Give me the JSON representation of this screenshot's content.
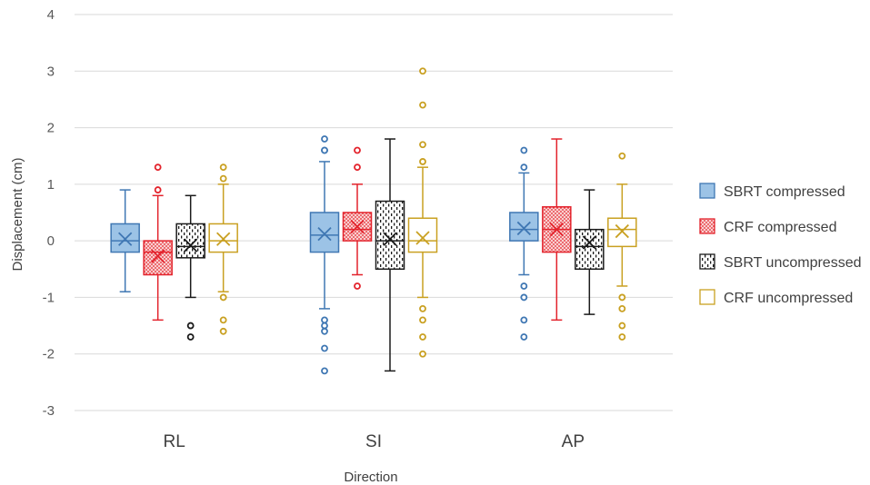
{
  "chart_data": {
    "type": "box",
    "xlabel": "Direction",
    "ylabel": "Displacement (cm)",
    "ylim": [
      -3,
      4
    ],
    "yticks": [
      -3,
      -2,
      -1,
      0,
      1,
      2,
      3,
      4
    ],
    "categories": [
      "RL",
      "SI",
      "AP"
    ],
    "grid": "horizontal",
    "legend_position": "right",
    "series": [
      {
        "name": "SBRT compressed",
        "color": "#3f77b3",
        "fill": "#9cc3e6",
        "pattern": "solid",
        "boxes": [
          {
            "whisker_low": -0.9,
            "q1": -0.2,
            "median": 0.0,
            "q3": 0.3,
            "whisker_high": 0.9,
            "mean": 0.03,
            "outliers": []
          },
          {
            "whisker_low": -1.2,
            "q1": -0.2,
            "median": 0.1,
            "q3": 0.5,
            "whisker_high": 1.4,
            "mean": 0.12,
            "outliers": [
              1.6,
              1.6,
              1.8,
              -1.4,
              -1.5,
              -1.6,
              -1.9,
              -2.3
            ]
          },
          {
            "whisker_low": -0.6,
            "q1": 0.0,
            "median": 0.2,
            "q3": 0.5,
            "whisker_high": 1.2,
            "mean": 0.22,
            "outliers": [
              1.3,
              1.6,
              -0.8,
              -1.0,
              -1.4,
              -1.7
            ]
          }
        ]
      },
      {
        "name": "CRF compressed",
        "color": "#e3232c",
        "fill": "#f6b4b4",
        "pattern": "dots",
        "boxes": [
          {
            "whisker_low": -1.4,
            "q1": -0.6,
            "median": -0.2,
            "q3": 0.0,
            "whisker_high": 0.8,
            "mean": -0.27,
            "outliers": [
              0.9,
              1.3
            ]
          },
          {
            "whisker_low": -0.6,
            "q1": 0.0,
            "median": 0.2,
            "q3": 0.5,
            "whisker_high": 1.0,
            "mean": 0.25,
            "outliers": [
              1.3,
              1.6,
              -0.8
            ]
          },
          {
            "whisker_low": -1.4,
            "q1": -0.2,
            "median": 0.2,
            "q3": 0.6,
            "whisker_high": 1.8,
            "mean": 0.2,
            "outliers": []
          }
        ]
      },
      {
        "name": "SBRT uncompressed",
        "color": "#1a1a1a",
        "fill": "#ffffff",
        "pattern": "dashes",
        "boxes": [
          {
            "whisker_low": -1.0,
            "q1": -0.3,
            "median": -0.1,
            "q3": 0.3,
            "whisker_high": 0.8,
            "mean": -0.08,
            "outliers": [
              -1.5,
              -1.7
            ]
          },
          {
            "whisker_low": -2.3,
            "q1": -0.5,
            "median": 0.0,
            "q3": 0.7,
            "whisker_high": 1.8,
            "mean": 0.03,
            "outliers": []
          },
          {
            "whisker_low": -1.3,
            "q1": -0.5,
            "median": -0.1,
            "q3": 0.2,
            "whisker_high": 0.9,
            "mean": -0.03,
            "outliers": []
          }
        ]
      },
      {
        "name": "CRF uncompressed",
        "color": "#c9a021",
        "fill": "#ffffff",
        "pattern": "none",
        "boxes": [
          {
            "whisker_low": -0.9,
            "q1": -0.2,
            "median": 0.0,
            "q3": 0.3,
            "whisker_high": 1.0,
            "mean": 0.03,
            "outliers": [
              1.1,
              1.3,
              -1.0,
              -1.4,
              -1.6
            ]
          },
          {
            "whisker_low": -1.0,
            "q1": -0.2,
            "median": 0.0,
            "q3": 0.4,
            "whisker_high": 1.3,
            "mean": 0.05,
            "outliers": [
              1.4,
              1.7,
              2.4,
              3.0,
              -1.2,
              -1.4,
              -1.7,
              -2.0
            ]
          },
          {
            "whisker_low": -0.8,
            "q1": -0.1,
            "median": 0.2,
            "q3": 0.4,
            "whisker_high": 1.0,
            "mean": 0.17,
            "outliers": [
              1.5,
              -1.0,
              -1.2,
              -1.5,
              -1.7
            ]
          }
        ]
      }
    ]
  }
}
